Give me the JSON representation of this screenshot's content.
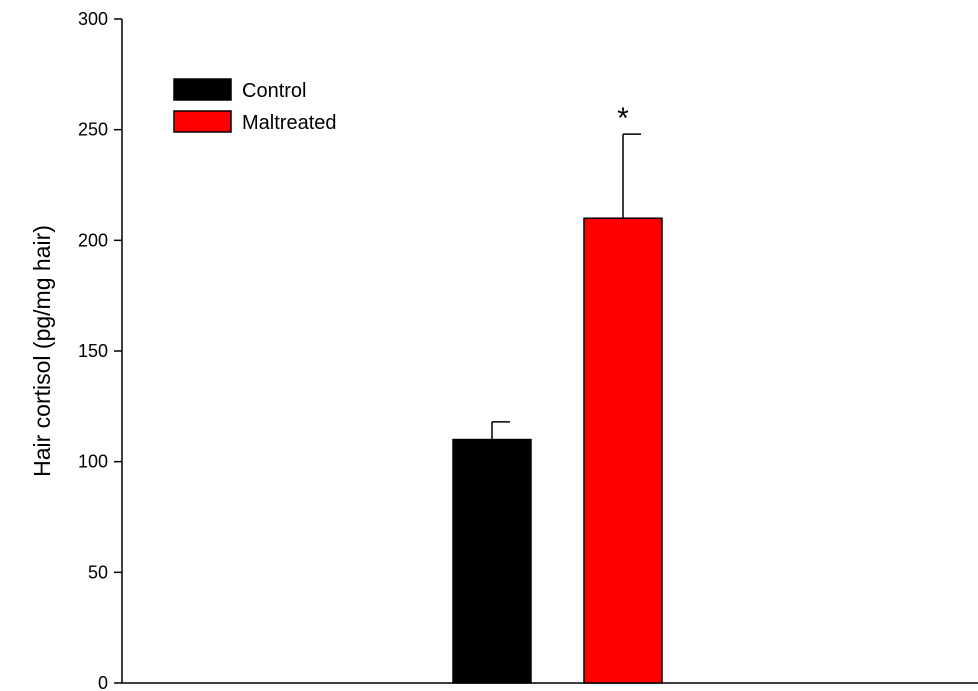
{
  "chart_data": {
    "type": "bar",
    "title": "",
    "xlabel": "",
    "ylabel": "Hair cortisol (pg/mg hair)",
    "ylim": [
      0,
      300
    ],
    "yticks": [
      0,
      50,
      100,
      150,
      200,
      250,
      300
    ],
    "grid": false,
    "legend_position": "top-left",
    "series": [
      {
        "name": "Control",
        "value": 110,
        "error": 8,
        "color": "#000000"
      },
      {
        "name": "Maltreated",
        "value": 210,
        "error": 38,
        "color": "#ff0000"
      }
    ],
    "annotations": [
      {
        "text": "*",
        "series": "Maltreated"
      }
    ]
  }
}
